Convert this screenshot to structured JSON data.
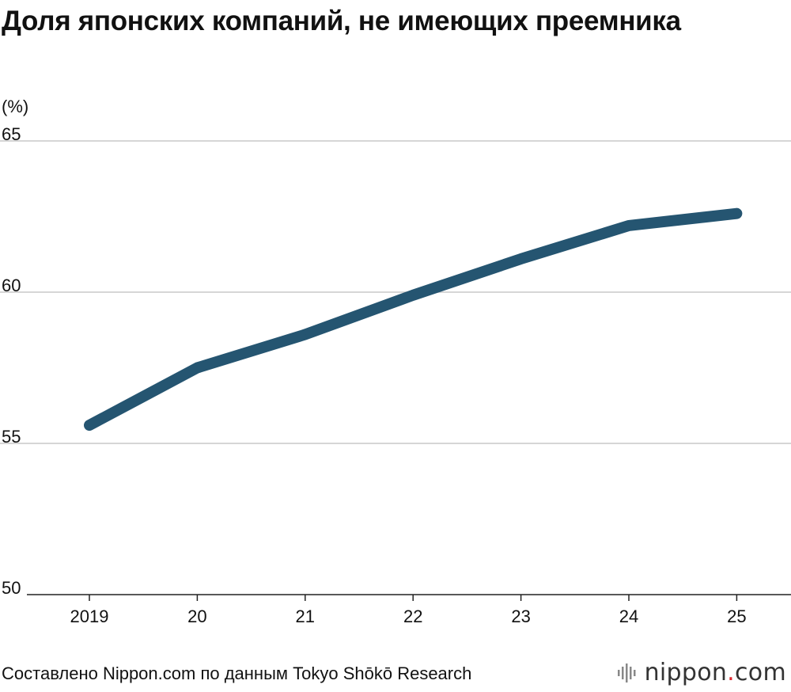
{
  "title": "Доля японских компаний, не имеющих преемника",
  "source": "Составлено Nippon.com по данным Tokyo Shōkō Research",
  "logo": {
    "name": "nippon",
    "dot": ".",
    "domain": "com",
    "icon": "sound-wave-icon"
  },
  "colors": {
    "line": "#255571",
    "grid": "#c8c8c8",
    "axis": "#222222",
    "logo_dot": "#e0262e"
  },
  "chart_data": {
    "type": "line",
    "title": "Доля японских компаний, не имеющих преемника",
    "ylabel": "(%)",
    "xlabel": "",
    "categories": [
      "2019",
      "20",
      "21",
      "22",
      "23",
      "24",
      "25"
    ],
    "series": [
      {
        "values": [
          55.6,
          57.5,
          58.6,
          59.9,
          61.1,
          62.2,
          62.6
        ]
      }
    ],
    "ylim": [
      50,
      65
    ],
    "yticks": [
      50,
      55,
      60,
      65
    ],
    "grid": true,
    "legend": "none"
  }
}
